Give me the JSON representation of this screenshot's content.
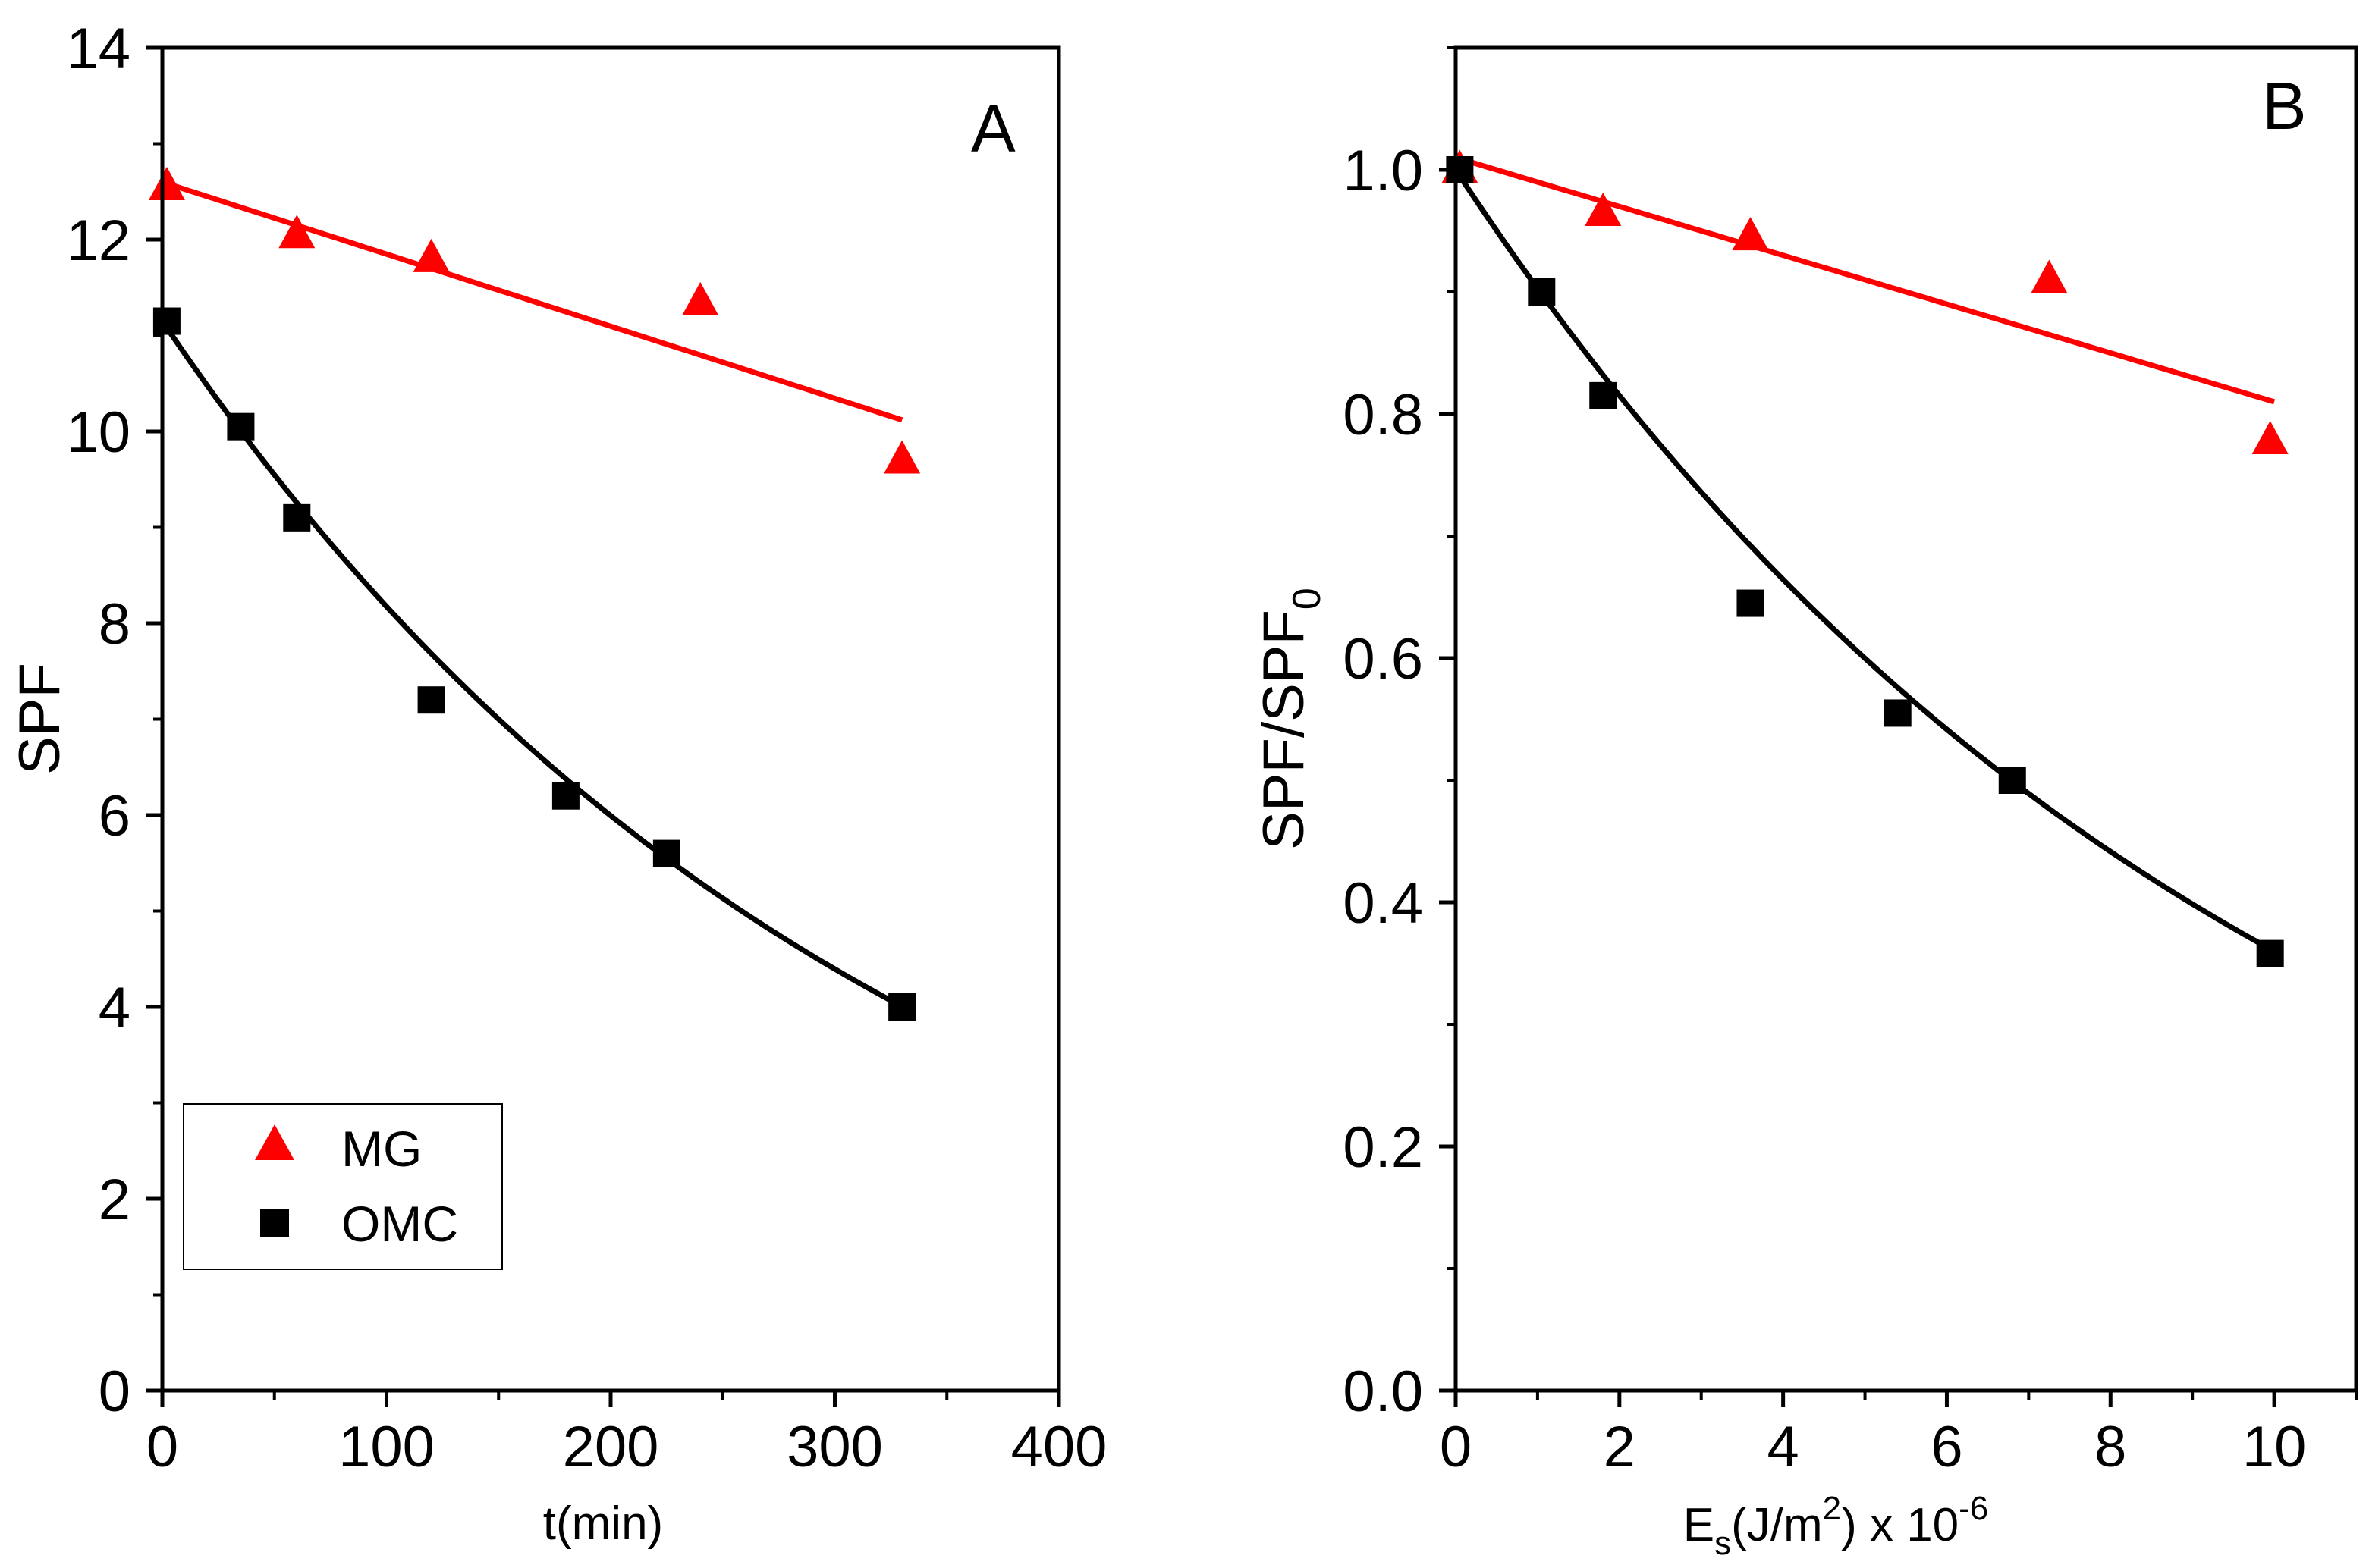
{
  "chart_data": [
    {
      "type": "scatter",
      "panel_label": "A",
      "xlabel": "t(min)",
      "ylabel": "SPF",
      "xlim": [
        0,
        400
      ],
      "ylim": [
        0,
        14
      ],
      "xticks": [
        0,
        100,
        200,
        300,
        400
      ],
      "yticks": [
        0,
        2,
        4,
        6,
        8,
        10,
        12,
        14
      ],
      "xtick_labels": [
        "0",
        "100",
        "200",
        "300",
        "400"
      ],
      "ytick_labels": [
        "0",
        "2",
        "4",
        "6",
        "8",
        "10",
        "12",
        "14"
      ],
      "series": [
        {
          "name": "MG",
          "marker": "triangle",
          "color": "#ff0000",
          "x": [
            2,
            60,
            120,
            240,
            330
          ],
          "y": [
            12.55,
            12.05,
            11.8,
            11.35,
            9.7
          ],
          "fit": {
            "kind": "linear",
            "x_range": [
              0,
              330
            ],
            "y_start": 12.6,
            "y_end": 10.12
          }
        },
        {
          "name": "OMC",
          "marker": "square",
          "color": "#000000",
          "x": [
            2,
            35,
            60,
            120,
            180,
            225,
            330
          ],
          "y": [
            11.15,
            10.05,
            9.1,
            7.2,
            6.2,
            5.6,
            4.0
          ],
          "fit": {
            "kind": "exponential",
            "x_range": [
              0,
              330
            ],
            "y0": 11.15,
            "k": 0.003103
          }
        }
      ],
      "legend": {
        "position": "bottom-left",
        "entries": [
          {
            "label": "MG",
            "marker": "triangle",
            "color": "#ff0000"
          },
          {
            "label": "OMC",
            "marker": "square",
            "color": "#000000"
          }
        ]
      }
    },
    {
      "type": "scatter",
      "panel_label": "B",
      "xlabel": {
        "main": "E",
        "sub": "s",
        "mid": "(J/m",
        "sup": "2",
        "end": ") x 10",
        "exp": "-6"
      },
      "ylabel": {
        "main": "SPF/SPF",
        "sub": "0"
      },
      "xlim": [
        0,
        11
      ],
      "ylim": [
        0,
        1.1
      ],
      "xticks": [
        0,
        2,
        4,
        6,
        8,
        10
      ],
      "yticks": [
        0.0,
        0.2,
        0.4,
        0.6,
        0.8,
        1.0
      ],
      "xtick_labels": [
        "0",
        "2",
        "4",
        "6",
        "8",
        "10"
      ],
      "ytick_labels": [
        "0.0",
        "0.2",
        "0.4",
        "0.6",
        "0.8",
        "1.0"
      ],
      "series": [
        {
          "name": "MG",
          "marker": "triangle",
          "color": "#ff0000",
          "x": [
            0.05,
            1.8,
            3.6,
            7.25,
            9.95
          ],
          "y": [
            1.0,
            0.965,
            0.945,
            0.91,
            0.778
          ],
          "fit": {
            "kind": "linear",
            "x_range": [
              0,
              10
            ],
            "y_start": 1.01,
            "y_end": 0.81
          }
        },
        {
          "name": "OMC",
          "marker": "square",
          "color": "#000000",
          "x": [
            0.05,
            1.05,
            1.8,
            3.6,
            5.4,
            6.8,
            9.95
          ],
          "y": [
            1.0,
            0.9,
            0.815,
            0.645,
            0.555,
            0.5,
            0.358
          ],
          "fit": {
            "kind": "exponential",
            "x_range": [
              0,
              10
            ],
            "y0": 1.0,
            "k": 0.1022
          }
        }
      ]
    }
  ]
}
